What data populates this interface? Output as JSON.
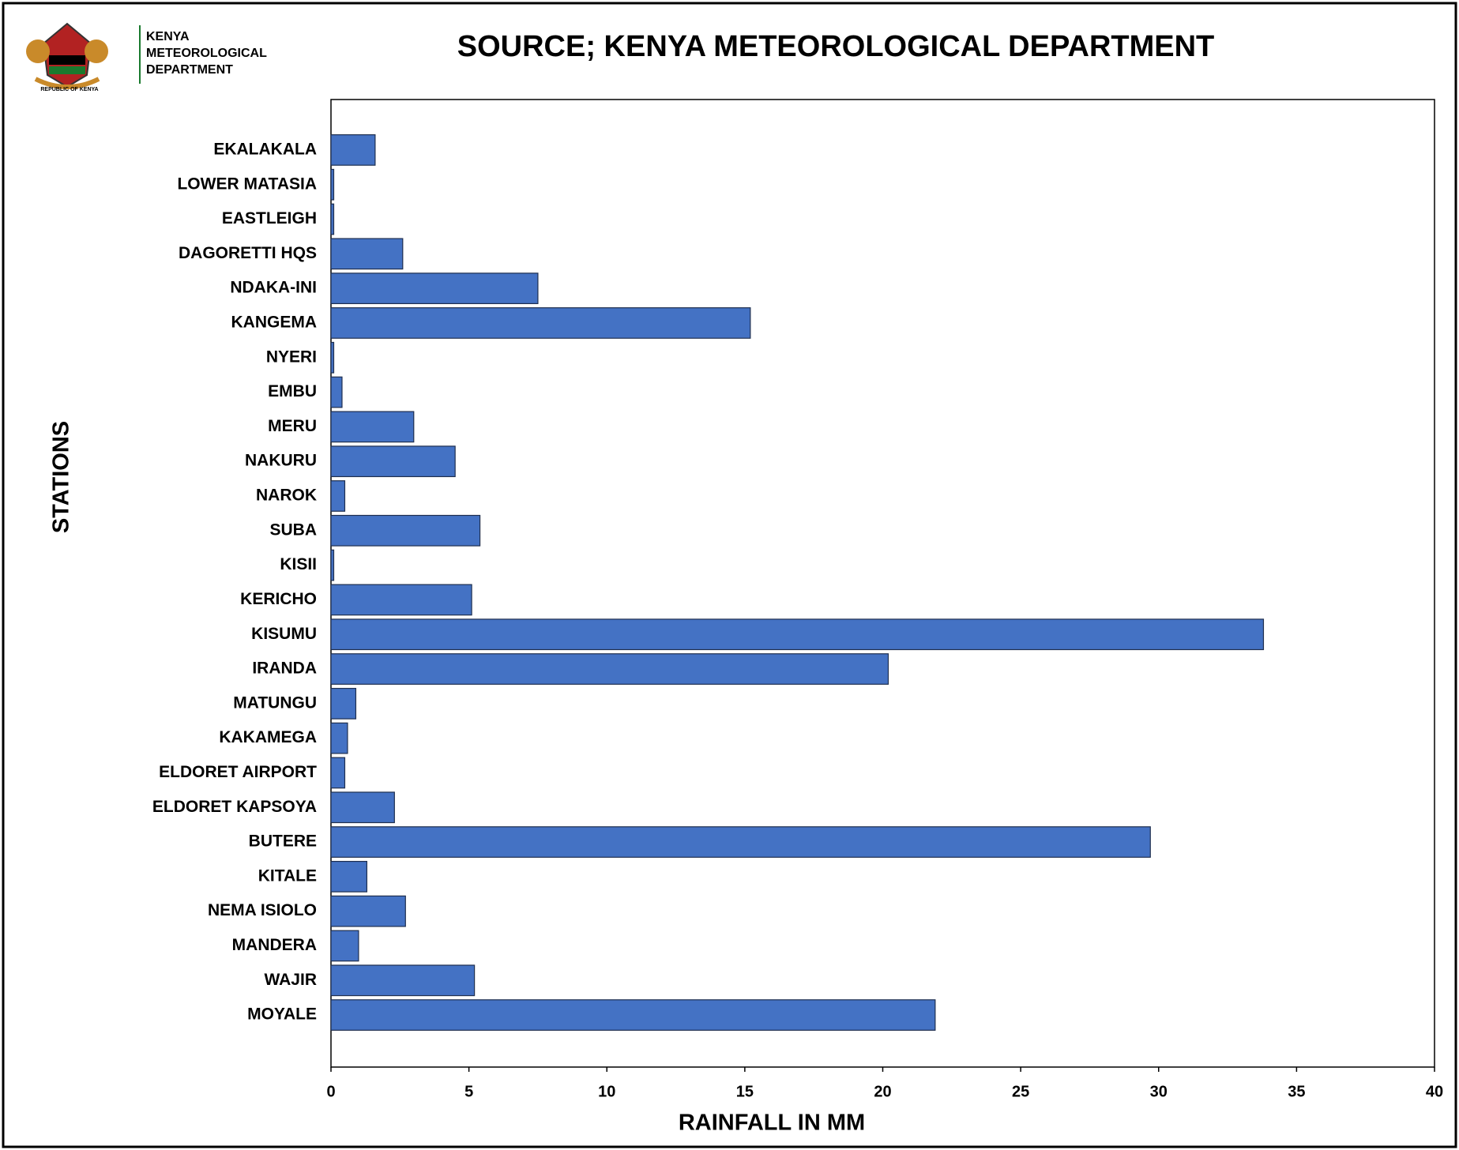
{
  "chart_data": {
    "type": "barh",
    "title": "SOURCE; KENYA METEOROLOGICAL DEPARTMENT",
    "xlabel": "RAINFALL IN MM",
    "ylabel": "STATIONS",
    "categories": [
      "EKALAKALA",
      "LOWER MATASIA",
      "EASTLEIGH",
      "DAGORETTI HQS",
      "NDAKA-INI",
      "KANGEMA",
      "NYERI",
      "EMBU",
      "MERU",
      "NAKURU",
      "NAROK",
      "SUBA",
      "KISII",
      "KERICHO",
      "KISUMU",
      "IRANDA",
      "MATUNGU",
      "KAKAMEGA",
      "ELDORET AIRPORT",
      "ELDORET KAPSOYA",
      "BUTERE",
      "KITALE",
      "NEMA ISIOLO",
      "MANDERA",
      "WAJIR",
      "MOYALE"
    ],
    "values": [
      1.6,
      0.1,
      0.1,
      2.6,
      7.5,
      15.2,
      0.1,
      0.4,
      3.0,
      4.5,
      0.5,
      5.4,
      0.1,
      5.1,
      33.8,
      20.2,
      0.9,
      0.6,
      0.5,
      2.3,
      29.7,
      1.3,
      2.7,
      1.0,
      5.2,
      21.9
    ],
    "color": "#4472c4",
    "xlim": [
      0,
      40
    ],
    "xticks": [
      0,
      5,
      10,
      15,
      20,
      25,
      30,
      35,
      40
    ],
    "grid": false
  },
  "logo": {
    "lines": [
      "KENYA",
      "METEOROLOGICAL",
      "DEPARTMENT"
    ],
    "caption": "REPUBLIC OF KENYA"
  }
}
